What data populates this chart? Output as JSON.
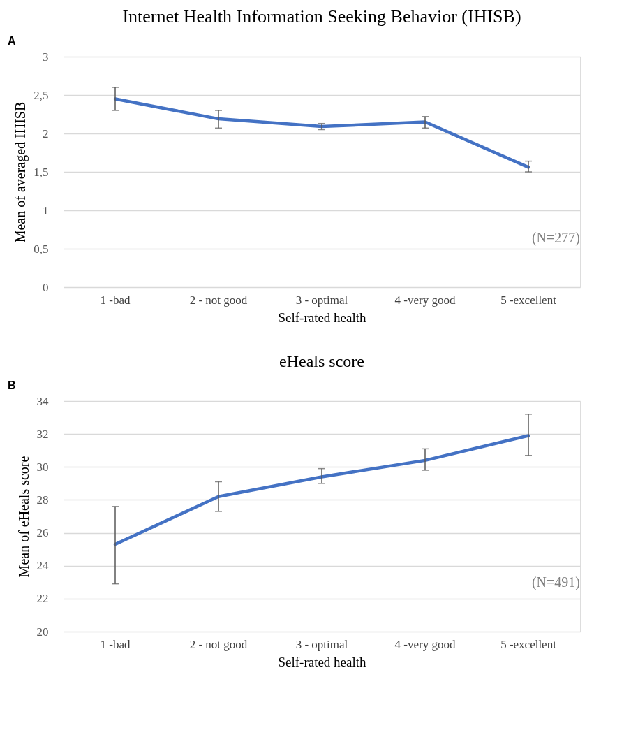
{
  "chart_data": [
    {
      "type": "line",
      "title": "Internet Health Information Seeking Behavior (IHISB)",
      "xlabel": "Self-rated health",
      "ylabel": "Mean of averaged IHISB",
      "categories": [
        "1 -bad",
        "2 - not good",
        "3 - optimal",
        "4 -very good",
        "5 -excellent"
      ],
      "series": [
        {
          "color": "#4472c4",
          "values": [
            2.45,
            2.19,
            2.09,
            2.15,
            1.56
          ],
          "errors": [
            [
              2.3,
              2.6
            ],
            [
              2.07,
              2.3
            ],
            [
              2.05,
              2.13
            ],
            [
              2.07,
              2.22
            ],
            [
              1.5,
              1.64
            ]
          ]
        }
      ],
      "ylim": [
        0,
        3
      ],
      "yticks": [
        0,
        {
          "value": 0.5,
          "label": "0,5"
        },
        1,
        {
          "value": 1.5,
          "label": "1,5"
        },
        2,
        {
          "value": 2.5,
          "label": "2,5"
        },
        3
      ],
      "grid": "y",
      "marker": "none",
      "line_style": "solid",
      "annotations": [
        "A",
        "(N=277)"
      ]
    },
    {
      "type": "line",
      "title": "eHeals score",
      "xlabel": "Self-rated health",
      "ylabel": "Mean of eHeals score",
      "categories": [
        "1 -bad",
        "2 - not good",
        "3 - optimal",
        "4 -very good",
        "5 -excellent"
      ],
      "series": [
        {
          "color": "#4472c4",
          "values": [
            25.3,
            28.2,
            29.4,
            30.4,
            31.9
          ],
          "errors": [
            [
              22.9,
              27.6
            ],
            [
              27.3,
              29.1
            ],
            [
              29.0,
              29.9
            ],
            [
              29.8,
              31.1
            ],
            [
              30.7,
              33.2
            ]
          ]
        }
      ],
      "ylim": [
        20,
        34
      ],
      "yticks": [
        20,
        22,
        24,
        26,
        28,
        30,
        32,
        34
      ],
      "grid": "y",
      "marker": "none",
      "line_style": "solid",
      "annotations": [
        "B",
        "(N=491)"
      ]
    }
  ]
}
